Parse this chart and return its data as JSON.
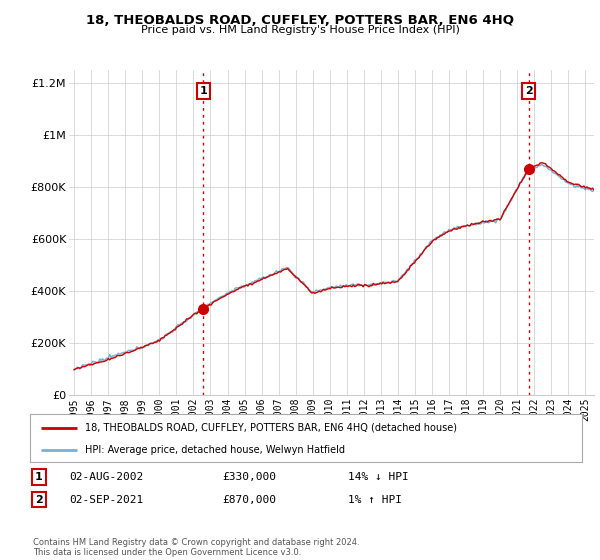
{
  "title": "18, THEOBALDS ROAD, CUFFLEY, POTTERS BAR, EN6 4HQ",
  "subtitle": "Price paid vs. HM Land Registry's House Price Index (HPI)",
  "legend_line1": "18, THEOBALDS ROAD, CUFFLEY, POTTERS BAR, EN6 4HQ (detached house)",
  "legend_line2": "HPI: Average price, detached house, Welwyn Hatfield",
  "annotation1_label": "1",
  "annotation1_date": "02-AUG-2002",
  "annotation1_price": "£330,000",
  "annotation1_hpi": "14% ↓ HPI",
  "annotation2_label": "2",
  "annotation2_date": "02-SEP-2021",
  "annotation2_price": "£870,000",
  "annotation2_hpi": "1% ↑ HPI",
  "footer": "Contains HM Land Registry data © Crown copyright and database right 2024.\nThis data is licensed under the Open Government Licence v3.0.",
  "red_color": "#cc0000",
  "blue_color": "#7aafd4",
  "fill_color": "#daeaf5",
  "annotation_vline_color": "#cc0000",
  "grid_color": "#cccccc",
  "background_color": "#ffffff",
  "ylim": [
    0,
    1250000
  ],
  "yticks": [
    0,
    200000,
    400000,
    600000,
    800000,
    1000000,
    1200000
  ],
  "xlim_start": 1994.7,
  "xlim_end": 2025.5,
  "purchase1_x": 2002.58,
  "purchase1_y": 330000,
  "purchase2_x": 2021.67,
  "purchase2_y": 870000,
  "hpi_start_year": 1995,
  "hpi_end_year": 2025
}
